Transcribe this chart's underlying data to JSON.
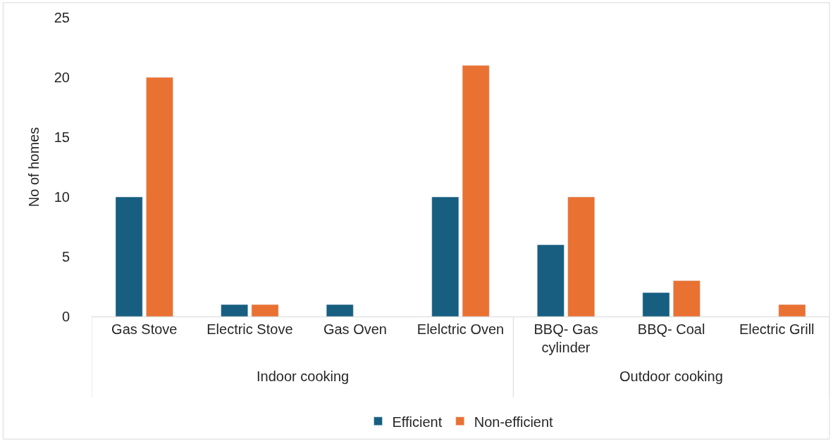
{
  "chart_data": {
    "type": "bar",
    "ylabel": "No of homes",
    "categories": [
      "Gas Stove",
      "Electric Stove",
      "Gas Oven",
      "Elelctric Oven",
      "BBQ- Gas cylinder",
      "BBQ- Coal",
      "Electric Grill"
    ],
    "series": [
      {
        "name": "Efficient",
        "color": "#175e80",
        "values": [
          10,
          1,
          1,
          10,
          6,
          2,
          null
        ]
      },
      {
        "name": "Non-efficient",
        "color": "#e97132",
        "values": [
          20,
          1,
          null,
          21,
          10,
          3,
          1
        ]
      }
    ],
    "annotations": [
      "Indoor cooking",
      "Outdoor cooking"
    ],
    "ylim": [
      0,
      25
    ],
    "yticks": [
      0,
      5,
      10,
      15,
      20,
      25
    ],
    "grid": false,
    "legend": "bottom"
  }
}
